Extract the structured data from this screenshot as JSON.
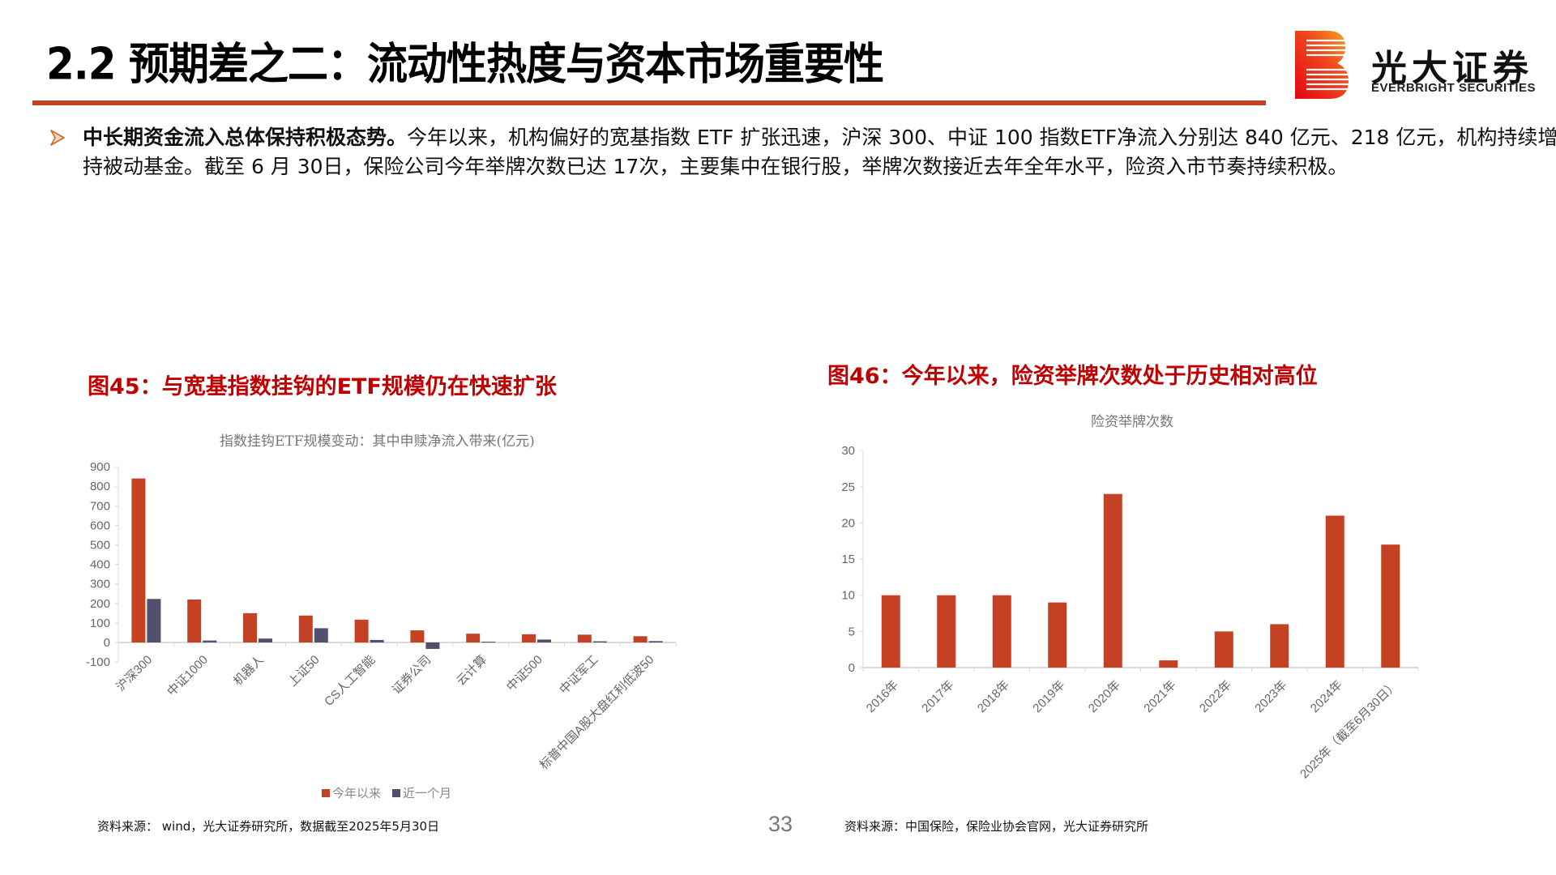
{
  "header": {
    "title": "2.2 预期差之二：流动性热度与资本市场重要性",
    "logo": {
      "icon": "everbright-b-logo-icon",
      "name_cn": "光大证券",
      "name_en": "EVERBRIGHT SECURITIES"
    },
    "accent_color": "#c44223"
  },
  "bullet": {
    "icon": "triangle-bullet-icon",
    "bold_lead": "中长期资金流入总体保持积极态势。",
    "text": "今年以来，机构偏好的宽基指数 ETF 扩张迅速，沪深 300、中证 100 指数ETF净流入分别达 840 亿元、218 亿元，机构持续增持被动基金。截至 6 月 30日，保险公司今年举牌次数已达 17次，主要集中在银行股，举牌次数接近去年全年水平，险资入市节奏持续积极。"
  },
  "figures": {
    "left": {
      "title": "图45：与宽基指数挂钩的ETF规模仍在快速扩张",
      "source": "资料来源： wind，光大证券研究所，数据截至2025年5月30日"
    },
    "right": {
      "title": "图46：今年以来，险资举牌次数处于历史相对高位",
      "source": "资料来源：中国保险，保险业协会官网，光大证券研究所"
    }
  },
  "page_number": "33",
  "chart_data": [
    {
      "type": "bar",
      "title": "指数挂钩ETF规模变动：其中申赎净流入带来(亿元)",
      "xlabel": "",
      "ylabel": "",
      "ylim": [
        -100,
        900
      ],
      "yticks": [
        -100,
        0,
        100,
        200,
        300,
        400,
        500,
        600,
        700,
        800,
        900
      ],
      "grid": false,
      "legend_position": "bottom",
      "categories": [
        "沪深300",
        "中证1000",
        "机器人",
        "上证50",
        "CS人工智能",
        "证券公司",
        "云计算",
        "中证500",
        "中证军工",
        "标普中国A股大盘红利低波50"
      ],
      "series": [
        {
          "name": "今年以来",
          "color": "#c44223",
          "values": [
            840,
            220,
            150,
            138,
            117,
            62,
            45,
            42,
            40,
            32
          ]
        },
        {
          "name": "近一个月",
          "color": "#52506f",
          "values": [
            223,
            10,
            20,
            73,
            13,
            -33,
            4,
            15,
            6,
            7
          ]
        }
      ]
    },
    {
      "type": "bar",
      "title": "险资举牌次数",
      "xlabel": "",
      "ylabel": "",
      "ylim": [
        0,
        30
      ],
      "yticks": [
        0,
        5,
        10,
        15,
        20,
        25,
        30
      ],
      "grid": false,
      "legend_position": "none",
      "categories": [
        "2016年",
        "2017年",
        "2018年",
        "2019年",
        "2020年",
        "2021年",
        "2022年",
        "2023年",
        "2024年",
        "2025年（截至6月30日）"
      ],
      "series": [
        {
          "name": "险资举牌次数",
          "color": "#c44223",
          "values": [
            10,
            10,
            10,
            9,
            24,
            1,
            5,
            6,
            21,
            17
          ]
        }
      ]
    }
  ]
}
